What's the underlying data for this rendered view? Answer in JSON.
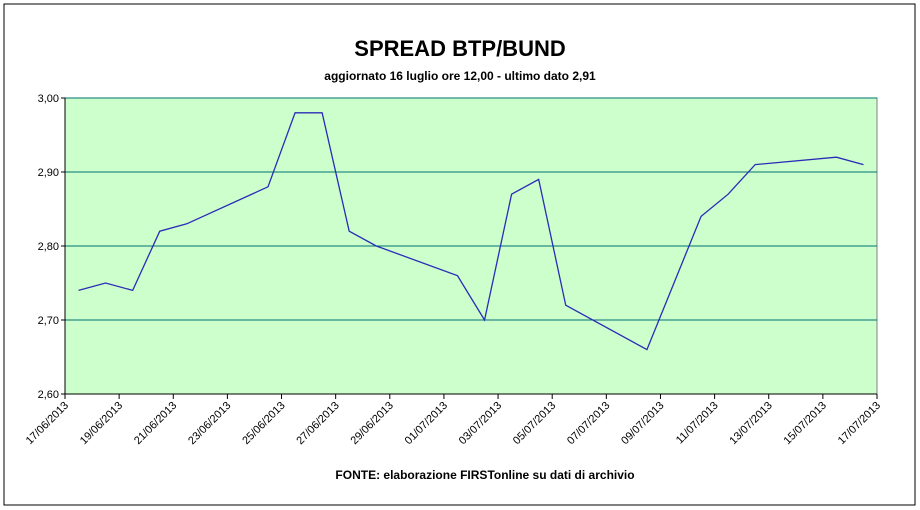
{
  "chart_data": {
    "type": "line",
    "title": "SPREAD BTP/BUND",
    "subtitle": "aggiornato 16 luglio ore 12,00 - ultimo dato 2,91",
    "source": "FONTE: elaborazione FIRSTonline su dati di archivio",
    "x": [
      "17/06/2013",
      "18/06/2013",
      "19/06/2013",
      "20/06/2013",
      "21/06/2013",
      "24/06/2013",
      "25/06/2013",
      "26/06/2013",
      "27/06/2013",
      "28/06/2013",
      "01/07/2013",
      "02/07/2013",
      "03/07/2013",
      "04/07/2013",
      "05/07/2013",
      "08/07/2013",
      "09/07/2013",
      "10/07/2013",
      "11/07/2013",
      "12/07/2013",
      "15/07/2013",
      "16/07/2013"
    ],
    "series": [
      {
        "color": "#2b2bb8",
        "values": [
          2.74,
          2.75,
          2.74,
          2.82,
          2.83,
          2.88,
          2.98,
          2.98,
          2.82,
          2.8,
          2.76,
          2.7,
          2.87,
          2.89,
          2.72,
          2.66,
          2.75,
          2.84,
          2.87,
          2.91,
          2.92,
          2.91
        ]
      }
    ],
    "xlim": [
      "17/06/2013",
      "17/07/2013"
    ],
    "xticks": [
      "17/06/2013",
      "19/06/2013",
      "21/06/2013",
      "23/06/2013",
      "25/06/2013",
      "27/06/2013",
      "29/06/2013",
      "01/07/2013",
      "03/07/2013",
      "05/07/2013",
      "07/07/2013",
      "09/07/2013",
      "11/07/2013",
      "13/07/2013",
      "15/07/2013",
      "17/07/2013"
    ],
    "ylim": [
      2.6,
      3.0
    ],
    "yticks": [
      {
        "value": 2.6,
        "label": "2,60"
      },
      {
        "value": 2.7,
        "label": "2,70"
      },
      {
        "value": 2.8,
        "label": "2,80"
      },
      {
        "value": 2.9,
        "label": "2,90"
      },
      {
        "value": 3.0,
        "label": "3,00"
      }
    ],
    "grid": true,
    "plot_background": "#ccffcc",
    "grid_color": "#007070"
  }
}
